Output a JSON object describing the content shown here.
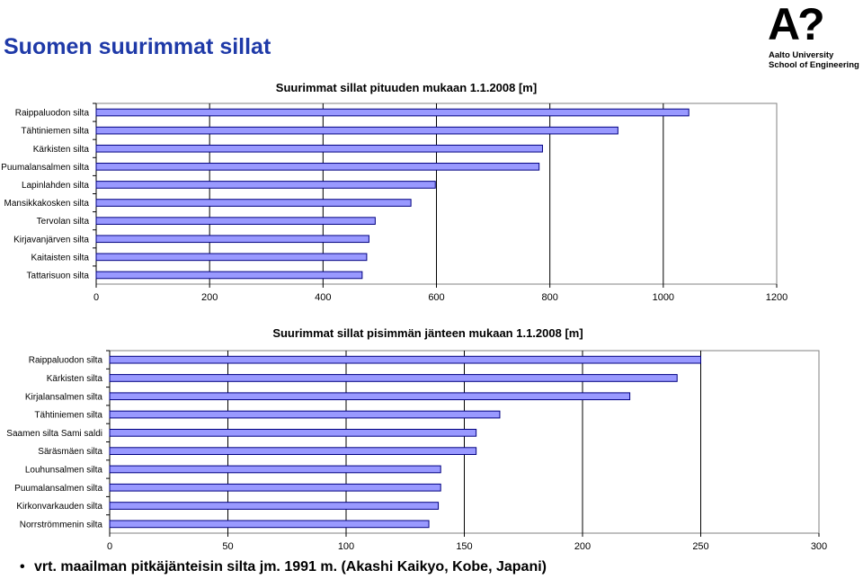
{
  "header": {
    "title": "Suomen suurimmat sillat"
  },
  "logo": {
    "mark": "A",
    "mark_q": "?",
    "line1": "Aalto University",
    "line2": "School of Engineering"
  },
  "colors": {
    "title": "#1f3aa8",
    "bar_fill": "#9999ff",
    "bar_stroke": "#000080",
    "grid": "#000000"
  },
  "chart_data": [
    {
      "type": "bar",
      "orientation": "horizontal",
      "title": "Suurimmat sillat pituuden mukaan 1.1.2008 [m]",
      "categories": [
        "Raippaluodon silta",
        "Tähtiniemen silta",
        "Kärkisten silta",
        "Puumalansalmen silta",
        "Lapinlahden silta",
        "Mansikkakosken silta",
        "Tervolan silta",
        "Kirjavanjärven silta",
        "Kaitaisten silta",
        "Tattarisuon silta"
      ],
      "values": [
        1045,
        920,
        787,
        781,
        598,
        555,
        492,
        481,
        477,
        469
      ],
      "xlim": [
        0,
        1200
      ],
      "xticks": [
        0,
        200,
        400,
        600,
        800,
        1000,
        1200
      ],
      "grid": true
    },
    {
      "type": "bar",
      "orientation": "horizontal",
      "title": "Suurimmat sillat pisimmän jänteen mukaan 1.1.2008 [m]",
      "categories": [
        "Raippaluodon silta",
        "Kärkisten silta",
        "Kirjalansalmen silta",
        "Tähtiniemen silta",
        "Saamen silta Sami saldi",
        "Säräsmäen silta",
        "Louhunsalmen silta",
        "Puumalansalmen silta",
        "Kirkonvarkauden silta",
        "Norrströmmenin silta"
      ],
      "values": [
        250,
        240,
        220,
        165,
        155,
        155,
        140,
        140,
        139,
        135
      ],
      "xlim": [
        0,
        300
      ],
      "xticks": [
        0,
        50,
        100,
        150,
        200,
        250,
        300
      ],
      "grid": true
    }
  ],
  "footer": {
    "bullet": "•",
    "text": "vrt. maailman pitkäjänteisin silta jm. 1991 m. (Akashi Kaikyo, Kobe, Japani)"
  }
}
